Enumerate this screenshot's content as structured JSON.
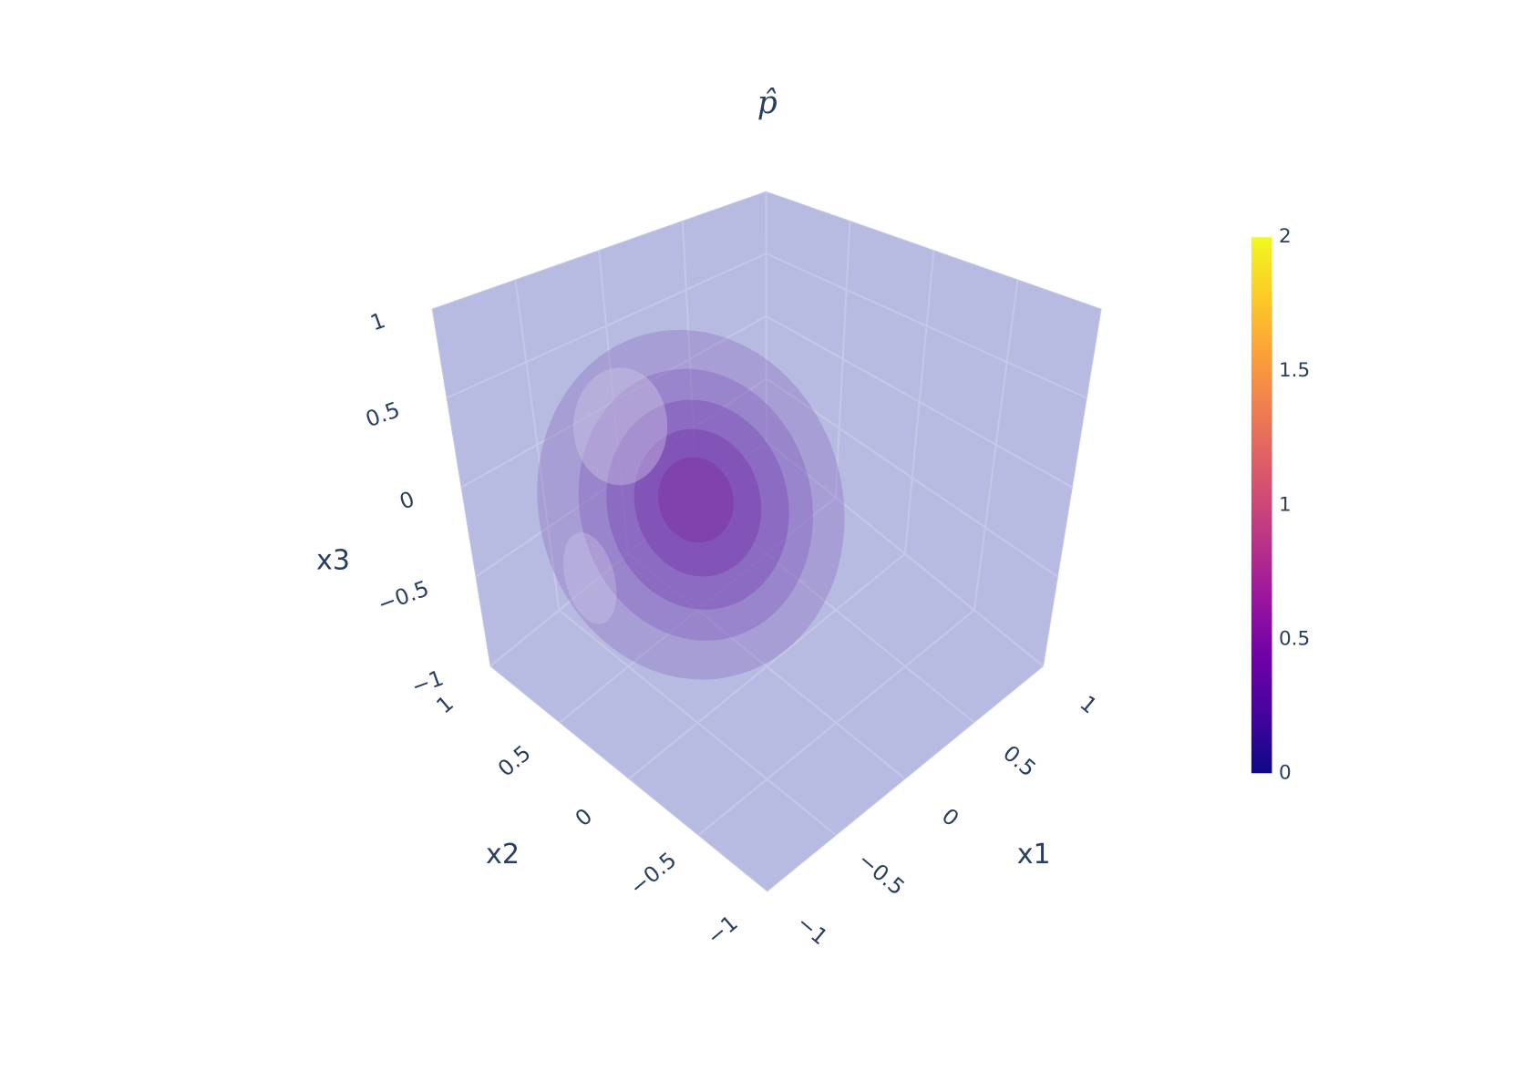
{
  "chart_data": {
    "type": "volume",
    "title": "p̂",
    "x_label": "x1",
    "y_label": "x2",
    "z_label": "x3",
    "xlim": [
      -1,
      1
    ],
    "ylim": [
      -1,
      1
    ],
    "zlim": [
      -1,
      1
    ],
    "xticks": [
      {
        "value": -1,
        "label": "−1"
      },
      {
        "value": -0.5,
        "label": "−0.5"
      },
      0,
      0.5,
      1
    ],
    "yticks": [
      {
        "value": -1,
        "label": "−1"
      },
      {
        "value": -0.5,
        "label": "−0.5"
      },
      0,
      0.5,
      1
    ],
    "zticks": [
      {
        "value": -1,
        "label": "−1"
      },
      {
        "value": -0.5,
        "label": "−0.5"
      },
      0,
      0.5,
      1
    ],
    "clim": [
      0,
      2
    ],
    "cticks": [
      0,
      0.5,
      1,
      1.5,
      2
    ],
    "colorscale": [
      "#0d0887",
      "#46039f",
      "#7201a8",
      "#9c179e",
      "#bd3786",
      "#d8576b",
      "#ed7953",
      "#fb9f3a",
      "#fdca26",
      "#f0f921"
    ],
    "grid": true
  }
}
